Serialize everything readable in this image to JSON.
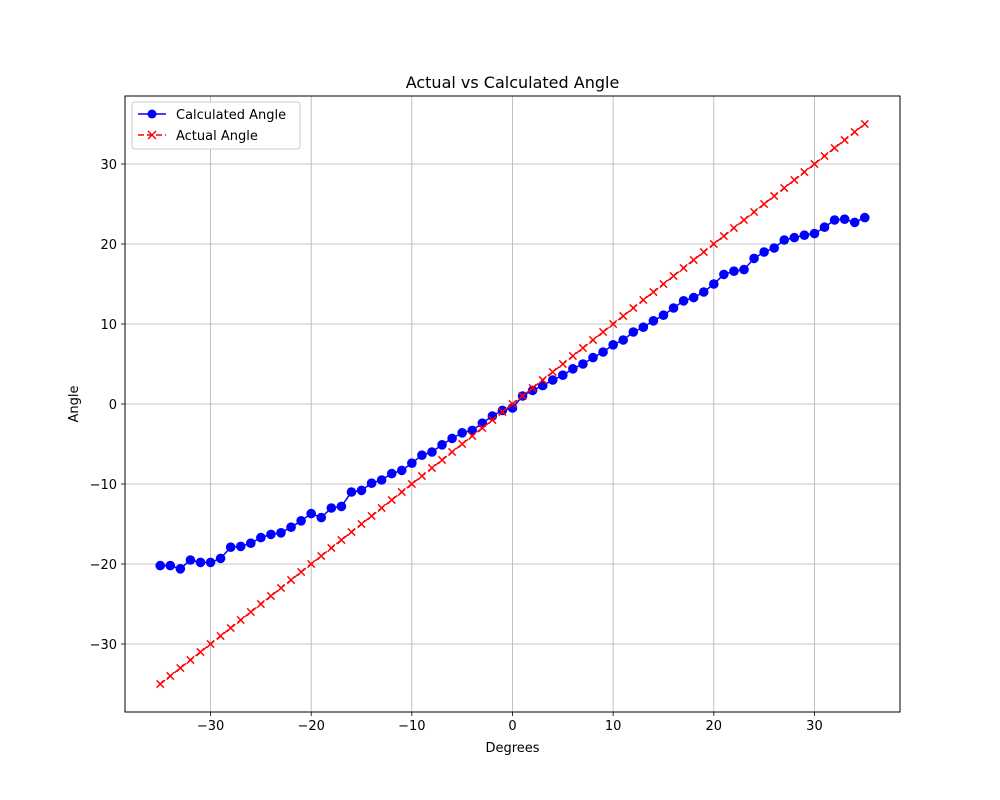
{
  "chart_data": {
    "type": "line",
    "title": "Actual vs Calculated Angle",
    "xlabel": "Degrees",
    "ylabel": "Angle",
    "xlim": [
      -38.5,
      38.5
    ],
    "ylim": [
      -38.5,
      38.5
    ],
    "xticks": [
      -30,
      -20,
      -10,
      0,
      10,
      20,
      30
    ],
    "yticks": [
      -30,
      -20,
      -10,
      0,
      10,
      20,
      30
    ],
    "grid": true,
    "legend_position": "top-left",
    "x": [
      -35,
      -34,
      -33,
      -32,
      -31,
      -30,
      -29,
      -28,
      -27,
      -26,
      -25,
      -24,
      -23,
      -22,
      -21,
      -20,
      -19,
      -18,
      -17,
      -16,
      -15,
      -14,
      -13,
      -12,
      -11,
      -10,
      -9,
      -8,
      -7,
      -6,
      -5,
      -4,
      -3,
      -2,
      -1,
      0,
      1,
      2,
      3,
      4,
      5,
      6,
      7,
      8,
      9,
      10,
      11,
      12,
      13,
      14,
      15,
      16,
      17,
      18,
      19,
      20,
      21,
      22,
      23,
      24,
      25,
      26,
      27,
      28,
      29,
      30,
      31,
      32,
      33,
      34,
      35
    ],
    "series": [
      {
        "name": "Calculated Angle",
        "color": "#0000ff",
        "marker": "circle",
        "linestyle": "solid",
        "values": [
          -20.2,
          -20.2,
          -20.6,
          -19.5,
          -19.8,
          -19.8,
          -19.3,
          -17.9,
          -17.8,
          -17.4,
          -16.7,
          -16.3,
          -16.1,
          -15.4,
          -14.6,
          -13.7,
          -14.2,
          -13.0,
          -12.8,
          -11.0,
          -10.8,
          -9.9,
          -9.5,
          -8.7,
          -8.3,
          -7.4,
          -6.4,
          -6.0,
          -5.1,
          -4.3,
          -3.6,
          -3.3,
          -2.4,
          -1.5,
          -0.8,
          -0.5,
          1.0,
          1.7,
          2.3,
          3.0,
          3.6,
          4.4,
          5.0,
          5.8,
          6.5,
          7.4,
          8.0,
          9.0,
          9.6,
          10.4,
          11.1,
          12.0,
          12.9,
          13.3,
          14.0,
          15.0,
          16.2,
          16.6,
          16.8,
          18.2,
          19.0,
          19.5,
          20.5,
          20.8,
          21.1,
          21.3,
          22.1,
          23.0,
          23.1,
          22.7,
          23.3
        ]
      },
      {
        "name": "Actual Angle",
        "color": "#ff0000",
        "marker": "x",
        "linestyle": "dashed",
        "values": [
          -35,
          -34,
          -33,
          -32,
          -31,
          -30,
          -29,
          -28,
          -27,
          -26,
          -25,
          -24,
          -23,
          -22,
          -21,
          -20,
          -19,
          -18,
          -17,
          -16,
          -15,
          -14,
          -13,
          -12,
          -11,
          -10,
          -9,
          -8,
          -7,
          -6,
          -5,
          -4,
          -3,
          -2,
          -1,
          0,
          1,
          2,
          3,
          4,
          5,
          6,
          7,
          8,
          9,
          10,
          11,
          12,
          13,
          14,
          15,
          16,
          17,
          18,
          19,
          20,
          21,
          22,
          23,
          24,
          25,
          26,
          27,
          28,
          29,
          30,
          31,
          32,
          33,
          34,
          35
        ]
      }
    ]
  }
}
